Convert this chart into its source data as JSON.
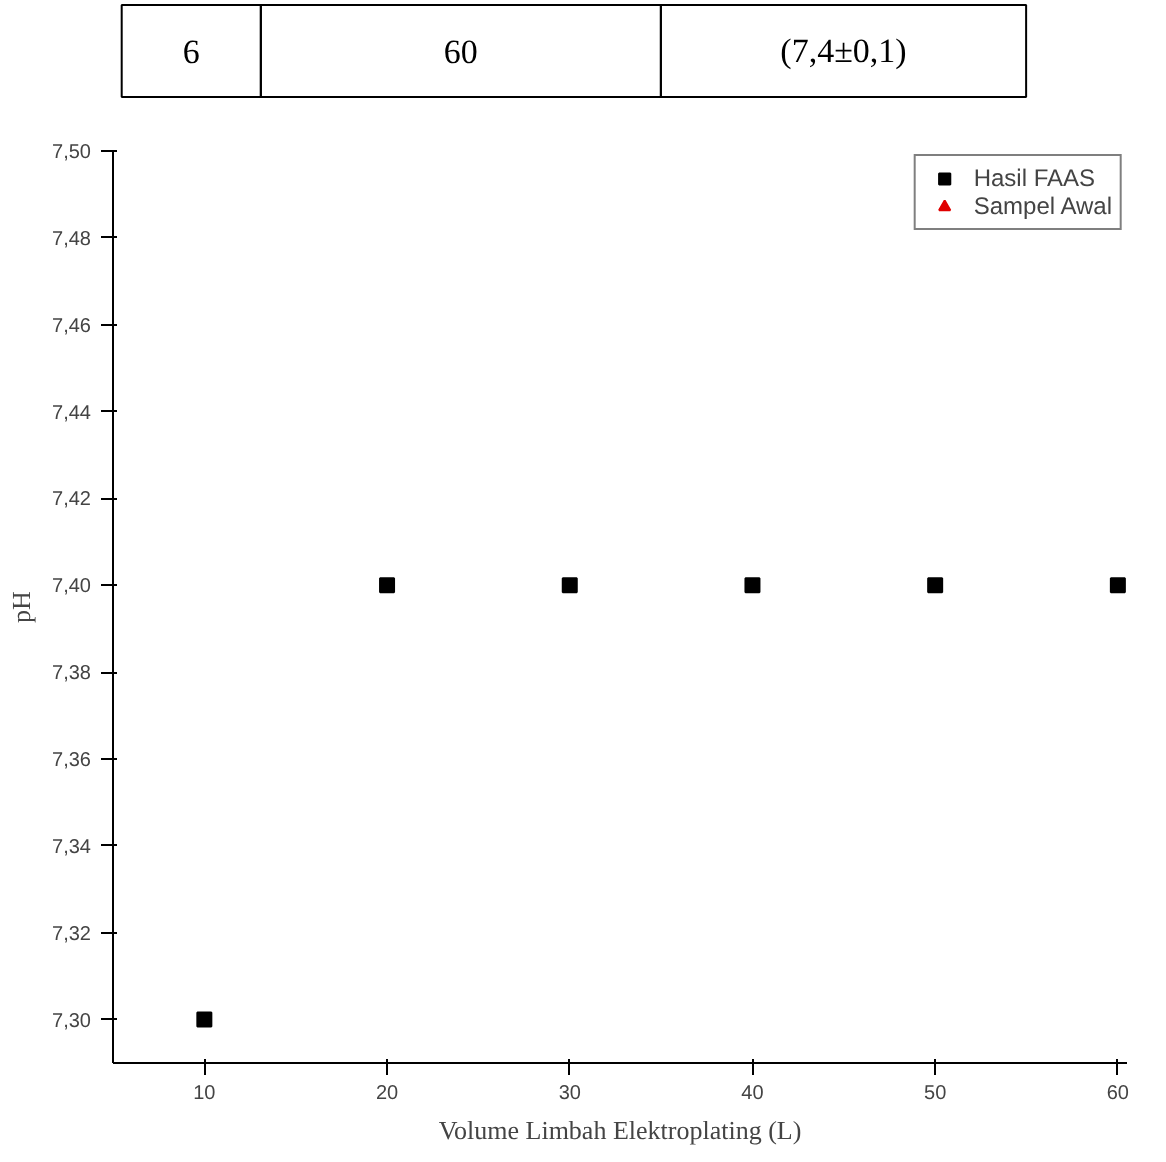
{
  "chart_data": {
    "type": "scatter",
    "xlabel": "Volume Limbah Elektroplating (L)",
    "ylabel": "pH",
    "annotations": [
      "6",
      "60",
      "(7,4±0,1)"
    ],
    "x": [
      10,
      20,
      30,
      40,
      50,
      60
    ],
    "series": [
      {
        "name": "Hasil FAAS",
        "color": "#000000",
        "marker": "square",
        "values": [
          7.3,
          7.4,
          7.4,
          7.4,
          7.4,
          7.4
        ]
      },
      {
        "name": "Sampel Awal",
        "color": "#e00000",
        "marker": "triangle",
        "values": [
          null,
          null,
          null,
          null,
          null,
          null
        ]
      }
    ],
    "xlim": [
      5,
      60.5
    ],
    "ylim": [
      7.29,
      7.5
    ],
    "xticks": [
      10,
      20,
      30,
      40,
      50,
      60
    ],
    "yticks": [
      {
        "value": 7.3,
        "label": "7,30"
      },
      {
        "value": 7.32,
        "label": "7,32"
      },
      {
        "value": 7.34,
        "label": "7,34"
      },
      {
        "value": 7.36,
        "label": "7,36"
      },
      {
        "value": 7.38,
        "label": "7,38"
      },
      {
        "value": 7.4,
        "label": "7,40"
      },
      {
        "value": 7.42,
        "label": "7,42"
      },
      {
        "value": 7.44,
        "label": "7,44"
      },
      {
        "value": 7.46,
        "label": "7,46"
      },
      {
        "value": 7.48,
        "label": "7,48"
      },
      {
        "value": 7.5,
        "label": "7,50"
      }
    ],
    "grid": false,
    "legend": "top right"
  }
}
